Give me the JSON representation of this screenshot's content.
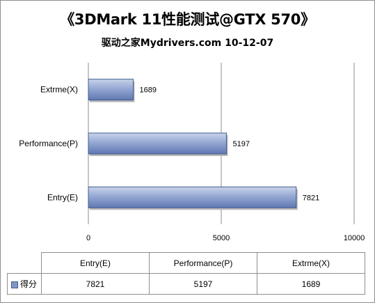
{
  "chart_data": {
    "type": "bar",
    "orientation": "horizontal",
    "title": "《3DMark 11性能测试@GTX 570》",
    "subtitle": "驱动之家Mydrivers.com 10-12-07",
    "categories": [
      "Extrme(X)",
      "Performance(P)",
      "Entry(E)"
    ],
    "series": [
      {
        "name": "得分",
        "values": [
          1689,
          5197,
          7821
        ]
      }
    ],
    "xlim": [
      0,
      10000
    ],
    "x_ticks": [
      "0",
      "5000",
      "10000"
    ],
    "grid": "vertical",
    "bar_color": "#8296c4",
    "data_table": {
      "columns": [
        "Entry(E)",
        "Performance(P)",
        "Extrme(X)"
      ],
      "legend_label": "得分",
      "values": [
        "7821",
        "5197",
        "1689"
      ]
    }
  }
}
